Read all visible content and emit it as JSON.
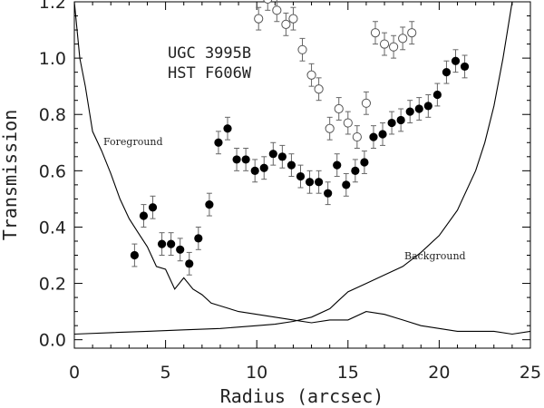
{
  "chart_data": {
    "type": "scatter",
    "xlabel": "Radius (arcsec)",
    "ylabel": "Transmission",
    "xlim": [
      0,
      25
    ],
    "ylim": [
      -0.03,
      1.2
    ],
    "x_ticks": [
      0,
      5,
      10,
      15,
      20,
      25
    ],
    "x_tick_labels": [
      "0",
      "5",
      "10",
      "15",
      "20",
      "25"
    ],
    "y_ticks": [
      0.0,
      0.2,
      0.4,
      0.6,
      0.8,
      1.0,
      1.2
    ],
    "y_tick_labels": [
      "0.0",
      "0.2",
      "0.4",
      "0.6",
      "0.8",
      "1.0",
      "1.2"
    ],
    "annotations": [
      "UGC 3995B",
      "HST F606W",
      "Foreground",
      "Background"
    ],
    "grid": false,
    "series": [
      {
        "marker": "filled-circle",
        "color": "#000000",
        "x": [
          3.3,
          3.8,
          4.3,
          4.8,
          5.3,
          5.8,
          6.3,
          6.8,
          7.4,
          7.9,
          8.4,
          8.9,
          9.4,
          9.9,
          10.4,
          10.9,
          11.4,
          11.9,
          12.4,
          12.9,
          13.4,
          13.9,
          14.4,
          14.9,
          15.4,
          15.9,
          16.4,
          16.9,
          17.4,
          17.9,
          18.4,
          18.9,
          19.4,
          19.9,
          20.4,
          20.9,
          21.4
        ],
        "y": [
          0.3,
          0.44,
          0.47,
          0.34,
          0.34,
          0.32,
          0.27,
          0.36,
          0.48,
          0.7,
          0.75,
          0.64,
          0.64,
          0.6,
          0.61,
          0.66,
          0.65,
          0.62,
          0.58,
          0.56,
          0.56,
          0.52,
          0.62,
          0.55,
          0.6,
          0.63,
          0.72,
          0.73,
          0.77,
          0.78,
          0.81,
          0.82,
          0.83,
          0.87,
          0.95,
          0.99,
          0.97
        ],
        "err": [
          0.04,
          0.04,
          0.04,
          0.04,
          0.04,
          0.04,
          0.04,
          0.04,
          0.04,
          0.04,
          0.04,
          0.04,
          0.04,
          0.04,
          0.04,
          0.04,
          0.04,
          0.04,
          0.04,
          0.04,
          0.04,
          0.04,
          0.04,
          0.04,
          0.04,
          0.04,
          0.04,
          0.04,
          0.04,
          0.04,
          0.04,
          0.04,
          0.04,
          0.04,
          0.04,
          0.04,
          0.04
        ]
      },
      {
        "marker": "open-circle",
        "color": "#555555",
        "x": [
          10.1,
          10.6,
          11.1,
          11.6,
          12.0,
          12.5,
          13.0,
          13.4,
          14.0,
          14.5,
          15.0,
          15.5,
          16.0,
          16.5,
          17.0,
          17.5,
          18.0,
          18.5
        ],
        "y": [
          1.14,
          1.21,
          1.17,
          1.12,
          1.14,
          1.03,
          0.94,
          0.89,
          0.75,
          0.82,
          0.77,
          0.72,
          0.84,
          1.09,
          1.05,
          1.04,
          1.07,
          1.09
        ],
        "err": [
          0.04,
          0.04,
          0.04,
          0.04,
          0.04,
          0.04,
          0.04,
          0.04,
          0.04,
          0.04,
          0.04,
          0.04,
          0.04,
          0.04,
          0.04,
          0.04,
          0.04,
          0.04
        ]
      },
      {
        "name": "Foreground",
        "type": "line",
        "color": "#000000",
        "x": [
          0.0,
          0.3,
          0.6,
          1.0,
          1.5,
          2.0,
          2.5,
          3.0,
          3.5,
          4.0,
          4.5,
          5.0,
          5.5,
          6.0,
          6.5,
          7.0,
          7.5,
          8.0,
          9.0,
          10.0,
          11.0,
          12.0,
          13.0,
          14.0,
          15.0,
          16.0,
          17.0,
          18.0,
          19.0,
          20.0,
          21.0,
          22.0,
          23.0,
          24.0,
          25.0
        ],
        "y": [
          1.2,
          1.0,
          0.9,
          0.74,
          0.67,
          0.59,
          0.5,
          0.43,
          0.38,
          0.33,
          0.26,
          0.25,
          0.18,
          0.22,
          0.18,
          0.16,
          0.13,
          0.12,
          0.1,
          0.09,
          0.08,
          0.07,
          0.06,
          0.07,
          0.07,
          0.1,
          0.09,
          0.07,
          0.05,
          0.04,
          0.03,
          0.03,
          0.03,
          0.02,
          0.03
        ]
      },
      {
        "name": "Background",
        "type": "line",
        "color": "#000000",
        "x": [
          0.0,
          2.0,
          4.0,
          6.0,
          8.0,
          10.0,
          11.0,
          12.0,
          13.0,
          14.0,
          14.5,
          15.0,
          16.0,
          17.0,
          18.0,
          19.0,
          20.0,
          21.0,
          22.0,
          22.5,
          23.0,
          23.5,
          24.0
        ],
        "y": [
          0.02,
          0.025,
          0.03,
          0.035,
          0.04,
          0.05,
          0.055,
          0.065,
          0.08,
          0.11,
          0.14,
          0.17,
          0.2,
          0.23,
          0.26,
          0.31,
          0.37,
          0.46,
          0.6,
          0.7,
          0.83,
          1.0,
          1.2
        ]
      }
    ]
  }
}
